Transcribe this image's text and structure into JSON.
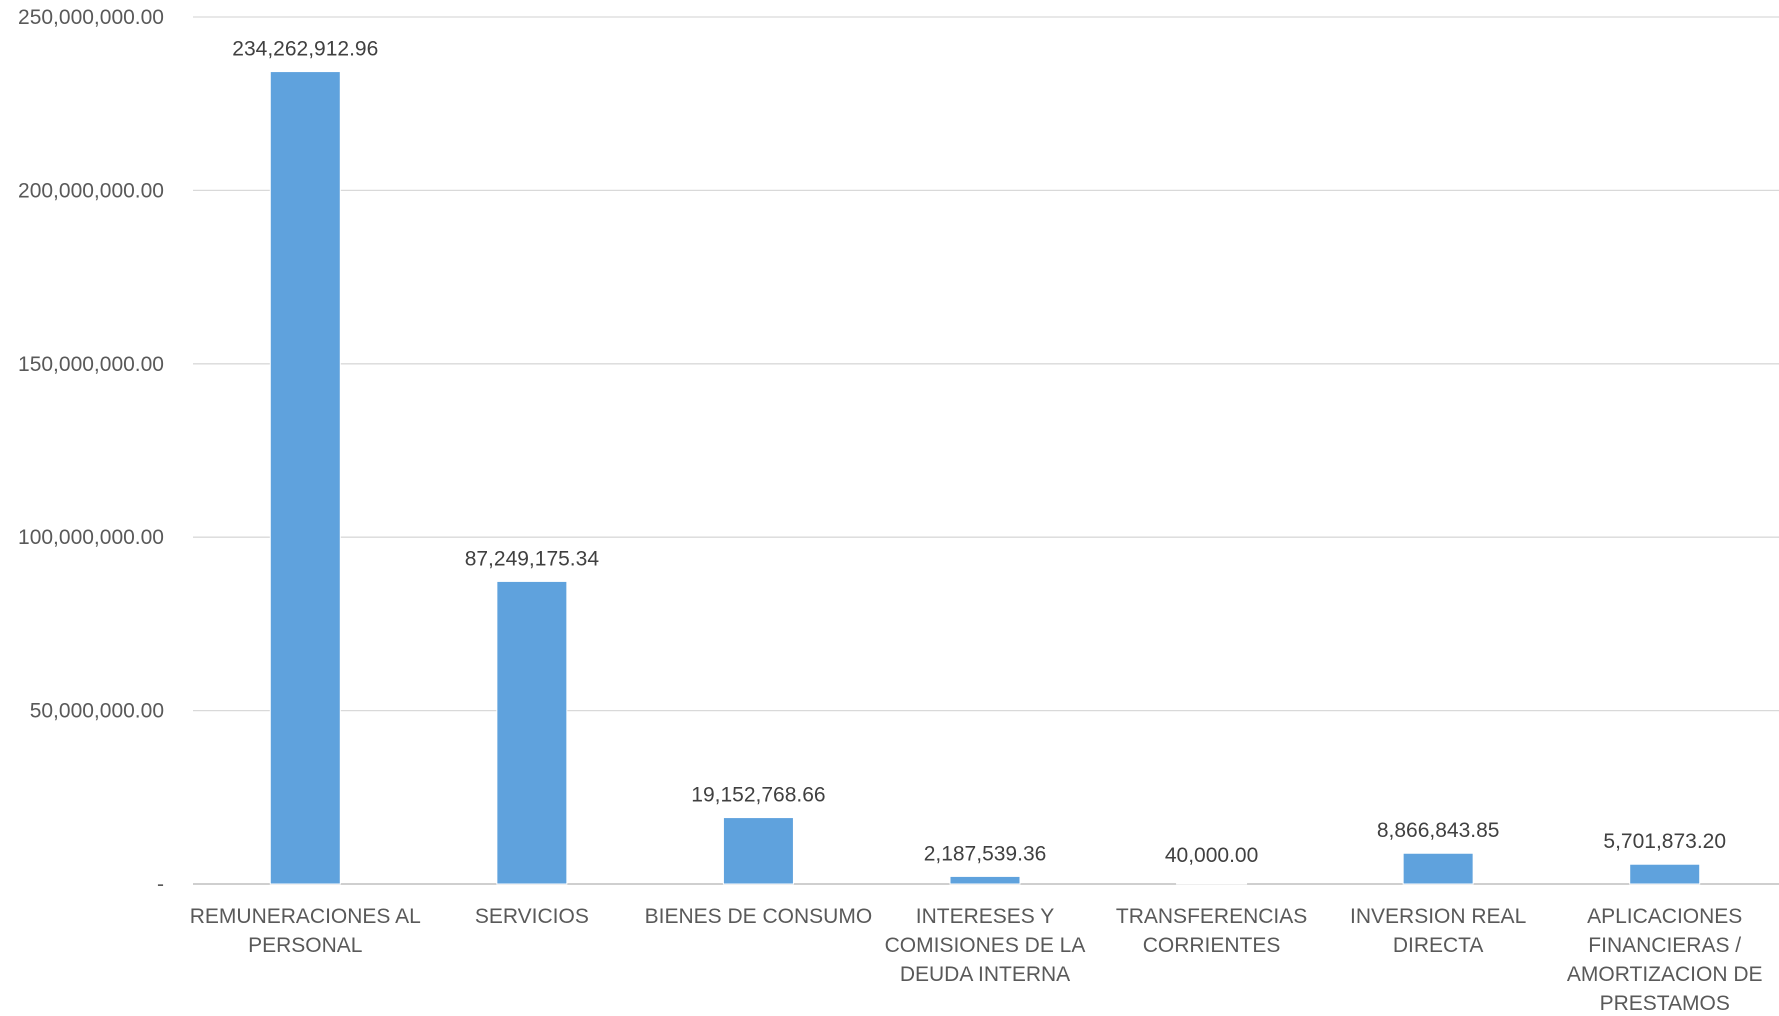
{
  "chart_data": {
    "type": "bar",
    "title": "",
    "xlabel": "",
    "ylabel": "",
    "ylim": [
      0,
      250000000
    ],
    "grid": true,
    "bar_color": "#5fa2dd",
    "yticks": [
      {
        "value": 0,
        "label": "-"
      },
      {
        "value": 50000000,
        "label": "50,000,000.00"
      },
      {
        "value": 100000000,
        "label": "100,000,000.00"
      },
      {
        "value": 150000000,
        "label": "150,000,000.00"
      },
      {
        "value": 200000000,
        "label": "200,000,000.00"
      },
      {
        "value": 250000000,
        "label": "250,000,000.00"
      }
    ],
    "categories": [
      [
        "REMUNERACIONES AL",
        "PERSONAL"
      ],
      [
        "SERVICIOS"
      ],
      [
        "BIENES DE CONSUMO"
      ],
      [
        "INTERESES Y",
        "COMISIONES DE LA",
        "DEUDA INTERNA"
      ],
      [
        "TRANSFERENCIAS",
        "CORRIENTES"
      ],
      [
        "INVERSION REAL",
        "DIRECTA"
      ],
      [
        "APLICACIONES",
        "FINANCIERAS /",
        "AMORTIZACION DE",
        "PRESTAMOS"
      ]
    ],
    "values": [
      234262912.96,
      87249175.34,
      19152768.66,
      2187539.36,
      40000.0,
      8866843.85,
      5701873.2
    ],
    "value_labels": [
      "234,262,912.96",
      "87,249,175.34",
      "19,152,768.66",
      "2,187,539.36",
      "40,000.00",
      "8,866,843.85",
      "5,701,873.20"
    ]
  }
}
